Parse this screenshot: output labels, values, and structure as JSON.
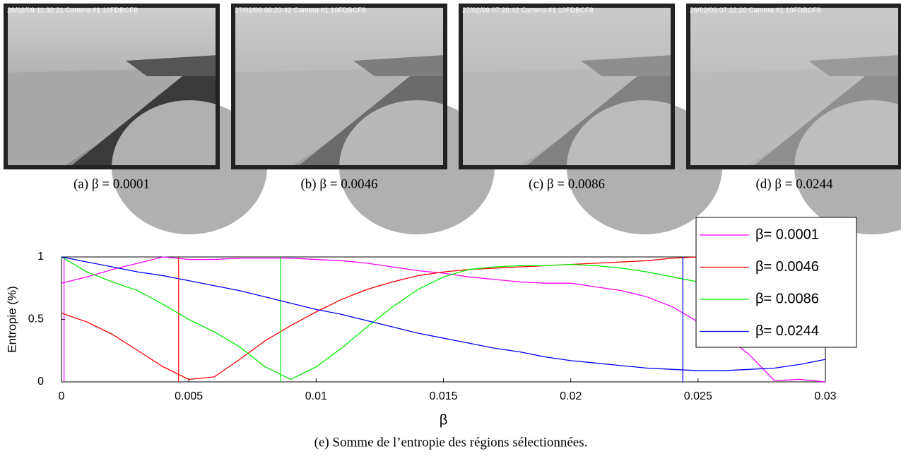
{
  "figures": [
    {
      "stamp": "28/02/09 11:32:21 Camera #1 10FDBCF8",
      "caption": "(a) β = 0.0001"
    },
    {
      "stamp": "27/02/09 08:20:42 Camera #1 10FDBCF8",
      "caption": "(b) β = 0.0046"
    },
    {
      "stamp": "27/02/09 07:20:42 Camera #1 10FDBCF8",
      "caption": "(c) β = 0.0086"
    },
    {
      "stamp": "26/02/09 07:22:20 Camera #1 10FDBCF8",
      "caption": "(d) β = 0.0244"
    }
  ],
  "chart_data": {
    "type": "line",
    "xlabel": "β",
    "ylabel": "Entropie (%)",
    "x": [
      0,
      0.001,
      0.002,
      0.003,
      0.004,
      0.005,
      0.006,
      0.007,
      0.008,
      0.009,
      0.01,
      0.011,
      0.012,
      0.013,
      0.014,
      0.015,
      0.016,
      0.017,
      0.018,
      0.019,
      0.02,
      0.021,
      0.022,
      0.023,
      0.024,
      0.025,
      0.026,
      0.027,
      0.028,
      0.029,
      0.03
    ],
    "series": [
      {
        "name": "β= 0.0001",
        "color": "#ff00ff",
        "beta": 0.0001,
        "values": [
          0.79,
          0.84,
          0.9,
          0.95,
          1.0,
          0.98,
          0.98,
          0.99,
          0.99,
          0.99,
          0.98,
          0.97,
          0.95,
          0.92,
          0.89,
          0.87,
          0.84,
          0.82,
          0.8,
          0.79,
          0.79,
          0.76,
          0.73,
          0.68,
          0.6,
          0.48,
          0.38,
          0.22,
          0.01,
          0.02,
          0.0
        ]
      },
      {
        "name": "β= 0.0046",
        "color": "#ff0000",
        "beta": 0.0046,
        "values": [
          0.55,
          0.48,
          0.38,
          0.25,
          0.12,
          0.02,
          0.04,
          0.18,
          0.33,
          0.45,
          0.56,
          0.66,
          0.74,
          0.8,
          0.85,
          0.88,
          0.9,
          0.91,
          0.92,
          0.93,
          0.94,
          0.95,
          0.96,
          0.97,
          0.99,
          1.0,
          1.0,
          1.0,
          1.0,
          1.0,
          1.0
        ]
      },
      {
        "name": "β= 0.0086",
        "color": "#00ee00",
        "beta": 0.0086,
        "values": [
          1.0,
          0.88,
          0.8,
          0.73,
          0.62,
          0.5,
          0.4,
          0.28,
          0.12,
          0.02,
          0.12,
          0.27,
          0.44,
          0.6,
          0.74,
          0.84,
          0.9,
          0.92,
          0.93,
          0.93,
          0.94,
          0.93,
          0.91,
          0.88,
          0.84,
          0.8,
          0.76,
          0.72,
          0.68,
          0.64,
          0.6
        ]
      },
      {
        "name": "β= 0.0244",
        "color": "#0000ff",
        "beta": 0.0244,
        "values": [
          1.0,
          0.96,
          0.92,
          0.88,
          0.85,
          0.81,
          0.77,
          0.73,
          0.68,
          0.63,
          0.58,
          0.54,
          0.49,
          0.44,
          0.39,
          0.35,
          0.31,
          0.27,
          0.24,
          0.2,
          0.17,
          0.15,
          0.13,
          0.11,
          0.1,
          0.09,
          0.09,
          0.1,
          0.11,
          0.14,
          0.18
        ]
      }
    ],
    "xlim": [
      0,
      0.03
    ],
    "ylim": [
      0,
      1
    ],
    "xticks": [
      0,
      0.005,
      0.01,
      0.015,
      0.02,
      0.025,
      0.03
    ],
    "yticks": [
      0,
      0.5,
      1
    ],
    "legend": "upper right"
  },
  "caption": "(e) Somme de l’entropie des régions sélectionnées."
}
